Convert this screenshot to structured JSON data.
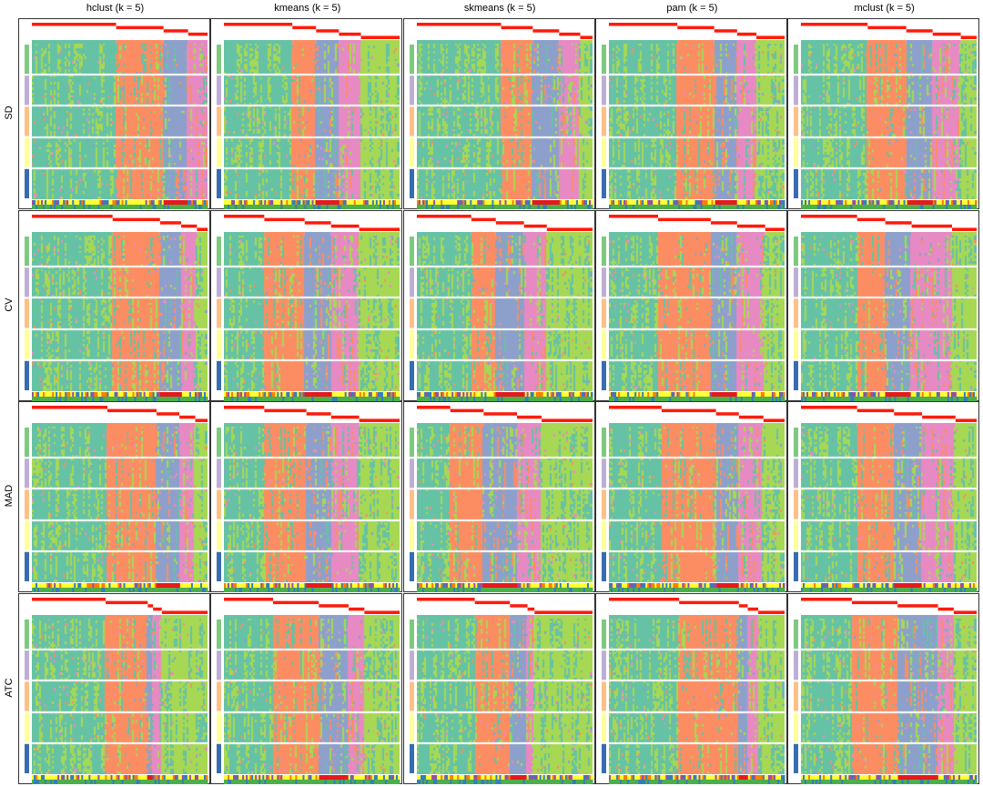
{
  "chart_data": {
    "type": "heatmap",
    "columns": [
      "hclust (k = 5)",
      "kmeans (k = 5)",
      "skmeans (k = 5)",
      "pam (k = 5)",
      "mclust (k = 5)"
    ],
    "rows": [
      "SD",
      "CV",
      "MAD",
      "ATC"
    ],
    "k": 5,
    "class_colors": [
      "#66C2A5",
      "#FC8D62",
      "#8DA0CB",
      "#E78AC3",
      "#A6D854"
    ],
    "row_group_colors": [
      "#7FC97F",
      "#BEAED4",
      "#FDC086",
      "#FFFF99",
      "#386CB0"
    ],
    "bottom_annotation_colors": [
      "#FFFF33",
      "#FF7F00",
      "#984EA3",
      "#377EB8",
      "#E41A1C",
      "#4DAF4A"
    ],
    "membership_colors": [
      "#FFFFFF",
      "#FF0000"
    ],
    "panels": [
      [
        [
          0.48,
          0.27,
          0.14,
          0.11,
          0.0
        ],
        [
          0.39,
          0.135,
          0.13,
          0.125,
          0.22
        ],
        [
          0.48,
          0.18,
          0.15,
          0.12,
          0.07
        ],
        [
          0.39,
          0.21,
          0.13,
          0.11,
          0.16
        ],
        [
          0.38,
          0.22,
          0.15,
          0.16,
          0.09
        ]
      ],
      [
        [
          0.46,
          0.27,
          0.12,
          0.09,
          0.06
        ],
        [
          0.23,
          0.23,
          0.15,
          0.16,
          0.23
        ],
        [
          0.31,
          0.14,
          0.16,
          0.13,
          0.26
        ],
        [
          0.28,
          0.3,
          0.15,
          0.16,
          0.11
        ],
        [
          0.32,
          0.16,
          0.15,
          0.23,
          0.14
        ]
      ],
      [
        [
          0.43,
          0.28,
          0.13,
          0.09,
          0.07
        ],
        [
          0.23,
          0.24,
          0.14,
          0.16,
          0.23
        ],
        [
          0.19,
          0.19,
          0.19,
          0.14,
          0.29
        ],
        [
          0.3,
          0.31,
          0.13,
          0.14,
          0.12
        ],
        [
          0.32,
          0.21,
          0.16,
          0.19,
          0.12
        ]
      ],
      [
        [
          0.42,
          0.24,
          0.03,
          0.05,
          0.26
        ],
        [
          0.28,
          0.26,
          0.17,
          0.09,
          0.2
        ],
        [
          0.33,
          0.2,
          0.1,
          0.04,
          0.33
        ],
        [
          0.4,
          0.34,
          0.05,
          0.06,
          0.15
        ],
        [
          0.29,
          0.26,
          0.23,
          0.09,
          0.13
        ]
      ]
    ]
  }
}
